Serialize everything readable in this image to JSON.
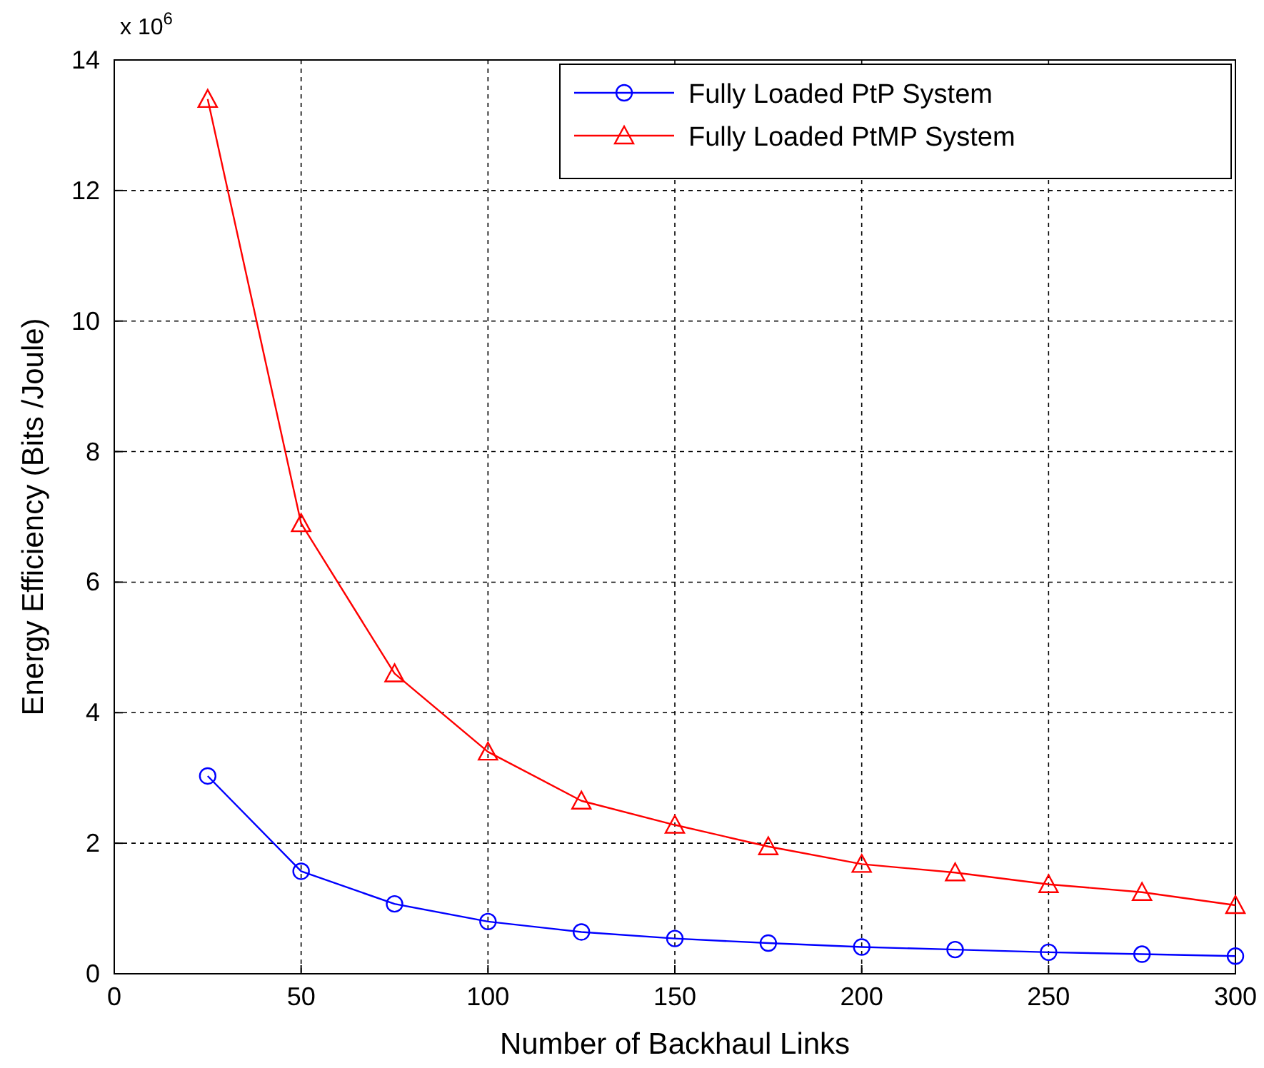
{
  "chart_data": {
    "type": "line",
    "xlabel": "Number of Backhaul Links",
    "ylabel": "Energy Efficiency (Bits /Joule)",
    "annotations": [
      "x 10$^{6}$"
    ],
    "x": [
      25,
      50,
      75,
      100,
      125,
      150,
      175,
      200,
      225,
      250,
      275,
      300
    ],
    "series": [
      {
        "name": "Fully Loaded PtP System",
        "color": "#0000ff",
        "marker": "circle",
        "values": [
          3.03,
          1.57,
          1.07,
          0.8,
          0.64,
          0.54,
          0.47,
          0.41,
          0.37,
          0.33,
          0.3,
          0.27
        ]
      },
      {
        "name": "Fully Loaded PtMP System",
        "color": "#ff0000",
        "marker": "triangle",
        "values": [
          13.4,
          6.9,
          4.6,
          3.4,
          2.65,
          2.28,
          1.95,
          1.68,
          1.55,
          1.37,
          1.25,
          1.05
        ]
      }
    ],
    "xlim": [
      0,
      300
    ],
    "xticks": [
      0,
      50,
      100,
      150,
      200,
      250,
      300
    ],
    "ylim": [
      0,
      14
    ],
    "yticks": [
      0,
      2,
      4,
      6,
      8,
      10,
      12,
      14
    ],
    "grid": true,
    "legend": "top right",
    "line_style": "solid"
  }
}
